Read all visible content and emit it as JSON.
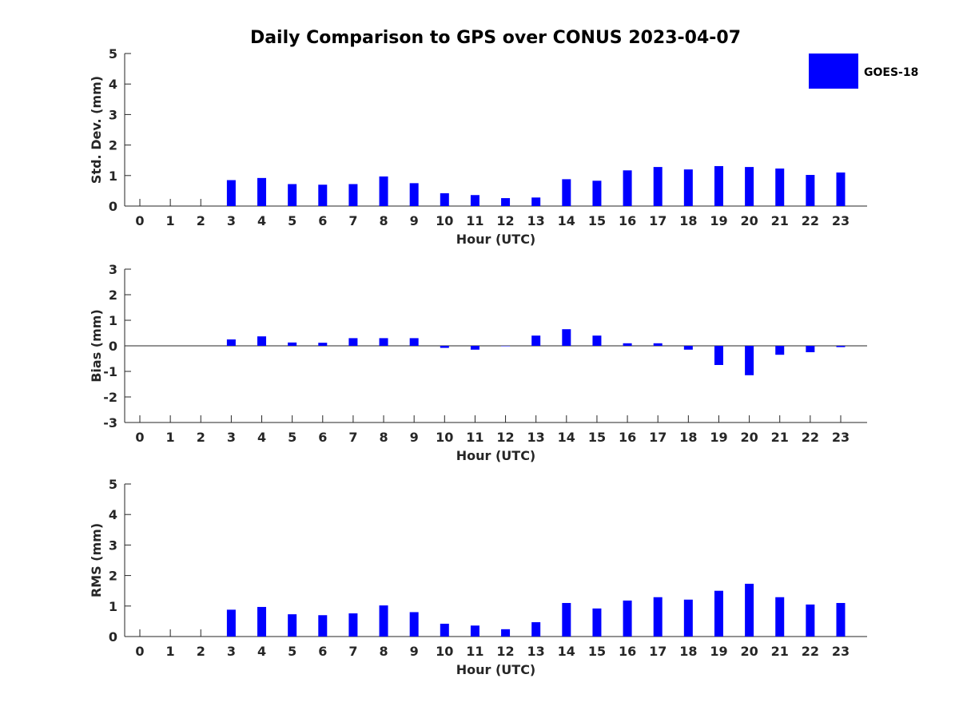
{
  "chart_data": {
    "title": "Daily Comparison to GPS over CONUS 2023-04-07",
    "type": "bar",
    "legend": {
      "label": "GOES-18",
      "color": "#0000ff",
      "placement": "top-right"
    },
    "panels": [
      {
        "type": "bar",
        "ylabel": "Std. Dev. (mm)",
        "xlabel": "Hour (UTC)",
        "ylim": [
          0,
          5
        ],
        "yticks": [
          0,
          1,
          2,
          3,
          4,
          5
        ],
        "categories": [
          0,
          1,
          2,
          3,
          4,
          5,
          6,
          7,
          8,
          9,
          10,
          11,
          12,
          13,
          14,
          15,
          16,
          17,
          18,
          19,
          20,
          21,
          22,
          23
        ],
        "values": [
          null,
          null,
          null,
          0.85,
          0.92,
          0.72,
          0.7,
          0.72,
          0.97,
          0.75,
          0.42,
          0.36,
          0.26,
          0.28,
          0.88,
          0.83,
          1.17,
          1.28,
          1.2,
          1.31,
          1.28,
          1.23,
          1.02,
          1.1
        ]
      },
      {
        "type": "bar",
        "ylabel": "Bias (mm)",
        "xlabel": "Hour (UTC)",
        "ylim": [
          -3,
          3
        ],
        "yticks": [
          -3,
          -2,
          -1,
          0,
          1,
          2,
          3
        ],
        "categories": [
          0,
          1,
          2,
          3,
          4,
          5,
          6,
          7,
          8,
          9,
          10,
          11,
          12,
          13,
          14,
          15,
          16,
          17,
          18,
          19,
          20,
          21,
          22,
          23
        ],
        "values": [
          null,
          null,
          null,
          0.25,
          0.37,
          0.13,
          0.12,
          0.3,
          0.3,
          0.3,
          -0.08,
          -0.15,
          0.0,
          0.4,
          0.65,
          0.4,
          0.1,
          0.1,
          -0.15,
          -0.75,
          -1.15,
          -0.35,
          -0.25,
          -0.05
        ]
      },
      {
        "type": "bar",
        "ylabel": "RMS (mm)",
        "xlabel": "Hour (UTC)",
        "ylim": [
          0,
          5
        ],
        "yticks": [
          0,
          1,
          2,
          3,
          4,
          5
        ],
        "categories": [
          0,
          1,
          2,
          3,
          4,
          5,
          6,
          7,
          8,
          9,
          10,
          11,
          12,
          13,
          14,
          15,
          16,
          17,
          18,
          19,
          20,
          21,
          22,
          23
        ],
        "values": [
          null,
          null,
          null,
          0.88,
          0.97,
          0.73,
          0.7,
          0.76,
          1.02,
          0.8,
          0.42,
          0.36,
          0.24,
          0.47,
          1.1,
          0.92,
          1.18,
          1.29,
          1.21,
          1.5,
          1.73,
          1.29,
          1.05,
          1.1
        ]
      }
    ]
  }
}
